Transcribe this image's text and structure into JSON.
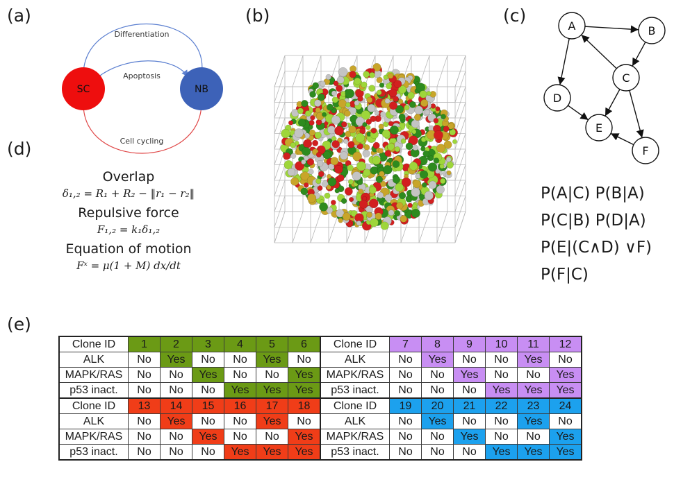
{
  "panels": {
    "a": "(a)",
    "b": "(b)",
    "c": "(c)",
    "d": "(d)",
    "e": "(e)"
  },
  "diagram_a": {
    "nodes": [
      {
        "id": "SC",
        "label": "SC",
        "color": "#ee0e0e"
      },
      {
        "id": "NB",
        "label": "NB",
        "color": "#3d62b8"
      }
    ],
    "edges": [
      {
        "from": "SC",
        "to": "NB",
        "label": "Differentiation",
        "color": "#5b7fd0"
      },
      {
        "from": "SC",
        "to": "NB",
        "label": "Apoptosis",
        "color": "#5b7fd0"
      },
      {
        "from": "NB",
        "to": "SC",
        "label": "Cell cycling",
        "color": "#e04848"
      }
    ]
  },
  "graph_c": {
    "nodes": [
      "A",
      "B",
      "C",
      "D",
      "E",
      "F"
    ],
    "edges": [
      [
        "A",
        "B"
      ],
      [
        "B",
        "C"
      ],
      [
        "C",
        "A"
      ],
      [
        "A",
        "D"
      ],
      [
        "D",
        "E"
      ],
      [
        "C",
        "E"
      ],
      [
        "C",
        "F"
      ],
      [
        "F",
        "E"
      ]
    ]
  },
  "probabilities": [
    "P(A|C)  P(B|A)",
    "P(C|B)  P(D|A)",
    "P(E|(C∧D) ∨F)",
    "P(F|C)"
  ],
  "equations": {
    "overlap_title": "Overlap",
    "overlap_formula": "δ₁,₂ = R₁ + R₂ − ‖r₁ − r₂‖",
    "force_title": "Repulsive force",
    "force_formula": "F₁,₂ = k₁δ₁,₂",
    "motion_title": "Equation of motion",
    "motion_formula": "Fˣ = μ(1 + M) dx/dt"
  },
  "cell_colors": [
    "#c4c4c4",
    "#2e8b1e",
    "#d21f1f",
    "#c8a52a",
    "#9ed63a"
  ],
  "table": {
    "row_labels": [
      "Clone ID",
      "ALK",
      "MAPK/RAS",
      "p53 inact."
    ],
    "blocks": [
      {
        "ids": [
          "1",
          "2",
          "3",
          "4",
          "5",
          "6"
        ],
        "color": "#6b9a15",
        "alk": [
          "No",
          "Yes",
          "No",
          "No",
          "Yes",
          "No"
        ],
        "mapk": [
          "No",
          "No",
          "Yes",
          "No",
          "No",
          "Yes"
        ],
        "p53": [
          "No",
          "No",
          "No",
          "Yes",
          "Yes",
          "Yes"
        ]
      },
      {
        "ids": [
          "7",
          "8",
          "9",
          "10",
          "11",
          "12"
        ],
        "color": "#c88ef3",
        "alk": [
          "No",
          "Yes",
          "No",
          "No",
          "Yes",
          "No"
        ],
        "mapk": [
          "No",
          "No",
          "Yes",
          "No",
          "No",
          "Yes"
        ],
        "p53": [
          "No",
          "No",
          "No",
          "Yes",
          "Yes",
          "Yes"
        ]
      },
      {
        "ids": [
          "13",
          "14",
          "15",
          "16",
          "17",
          "18"
        ],
        "color": "#f03d18",
        "alk": [
          "No",
          "Yes",
          "No",
          "No",
          "Yes",
          "No"
        ],
        "mapk": [
          "No",
          "No",
          "Yes",
          "No",
          "No",
          "Yes"
        ],
        "p53": [
          "No",
          "No",
          "No",
          "Yes",
          "Yes",
          "Yes"
        ]
      },
      {
        "ids": [
          "19",
          "20",
          "21",
          "22",
          "23",
          "24"
        ],
        "color": "#1ca1ee",
        "alk": [
          "No",
          "Yes",
          "No",
          "No",
          "Yes",
          "No"
        ],
        "mapk": [
          "No",
          "No",
          "Yes",
          "No",
          "No",
          "Yes"
        ],
        "p53": [
          "No",
          "No",
          "No",
          "Yes",
          "Yes",
          "Yes"
        ]
      }
    ]
  }
}
